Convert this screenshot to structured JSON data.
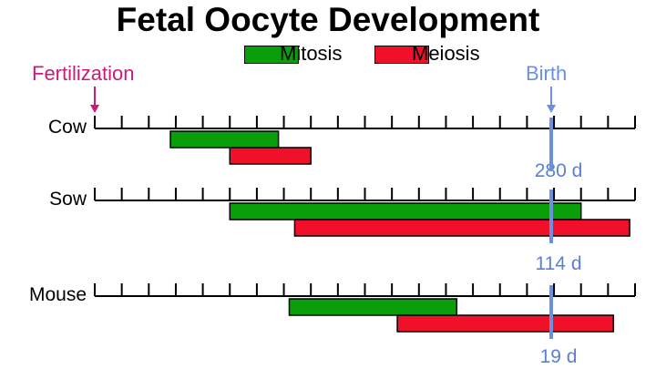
{
  "title": "Fetal Oocyte Development",
  "legend": [
    {
      "label": "Mitosis",
      "color": "#0a9e0a"
    },
    {
      "label": "Meiosis",
      "color": "#f0102a"
    }
  ],
  "markers": {
    "fertilization": {
      "label": "Fertilization",
      "color": "#cc1a7a"
    },
    "birth": {
      "label": "Birth",
      "color": "#6d8fe0"
    }
  },
  "rows": [
    {
      "species": "Cow",
      "gestation_label": "280 d",
      "mitosis": {
        "start": 0.14,
        "end": 0.34
      },
      "meiosis": {
        "start": 0.25,
        "end": 0.4
      }
    },
    {
      "species": "Sow",
      "gestation_label": "114 d",
      "mitosis": {
        "start": 0.25,
        "end": 0.9
      },
      "meiosis": {
        "start": 0.37,
        "end": 0.99
      }
    },
    {
      "species": "Mouse",
      "gestation_label": "19 d",
      "mitosis": {
        "start": 0.36,
        "end": 0.67
      },
      "meiosis": {
        "start": 0.56,
        "end": 0.96
      }
    }
  ]
}
